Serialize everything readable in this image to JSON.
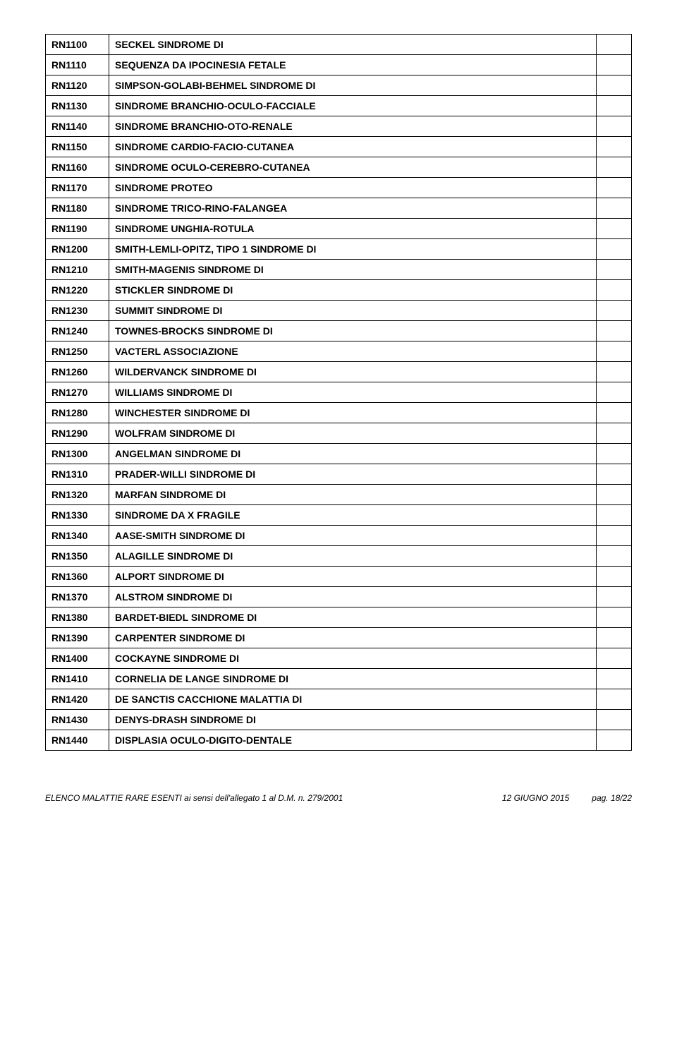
{
  "table": {
    "rows": [
      {
        "code": "RN1100",
        "desc": "SECKEL SINDROME DI"
      },
      {
        "code": "RN1110",
        "desc": "SEQUENZA DA IPOCINESIA FETALE"
      },
      {
        "code": "RN1120",
        "desc": "SIMPSON-GOLABI-BEHMEL SINDROME DI"
      },
      {
        "code": "RN1130",
        "desc": "SINDROME BRANCHIO-OCULO-FACCIALE"
      },
      {
        "code": "RN1140",
        "desc": "SINDROME BRANCHIO-OTO-RENALE"
      },
      {
        "code": "RN1150",
        "desc": "SINDROME CARDIO-FACIO-CUTANEA"
      },
      {
        "code": "RN1160",
        "desc": "SINDROME OCULO-CEREBRO-CUTANEA"
      },
      {
        "code": "RN1170",
        "desc": "SINDROME PROTEO"
      },
      {
        "code": "RN1180",
        "desc": "SINDROME TRICO-RINO-FALANGEA"
      },
      {
        "code": "RN1190",
        "desc": "SINDROME UNGHIA-ROTULA"
      },
      {
        "code": "RN1200",
        "desc": "SMITH-LEMLI-OPITZ, TIPO 1 SINDROME DI"
      },
      {
        "code": "RN1210",
        "desc": "SMITH-MAGENIS SINDROME DI"
      },
      {
        "code": "RN1220",
        "desc": "STICKLER SINDROME DI"
      },
      {
        "code": "RN1230",
        "desc": "SUMMIT SINDROME DI"
      },
      {
        "code": "RN1240",
        "desc": "TOWNES-BROCKS SINDROME DI"
      },
      {
        "code": "RN1250",
        "desc": "VACTERL ASSOCIAZIONE"
      },
      {
        "code": "RN1260",
        "desc": "WILDERVANCK SINDROME DI"
      },
      {
        "code": "RN1270",
        "desc": "WILLIAMS SINDROME DI"
      },
      {
        "code": "RN1280",
        "desc": "WINCHESTER SINDROME DI"
      },
      {
        "code": "RN1290",
        "desc": "WOLFRAM SINDROME DI"
      },
      {
        "code": "RN1300",
        "desc": "ANGELMAN SINDROME DI"
      },
      {
        "code": "RN1310",
        "desc": "PRADER-WILLI SINDROME DI"
      },
      {
        "code": "RN1320",
        "desc": "MARFAN SINDROME DI"
      },
      {
        "code": "RN1330",
        "desc": "SINDROME DA X FRAGILE"
      },
      {
        "code": "RN1340",
        "desc": "AASE-SMITH SINDROME DI"
      },
      {
        "code": "RN1350",
        "desc": "ALAGILLE SINDROME DI"
      },
      {
        "code": "RN1360",
        "desc": "ALPORT SINDROME DI"
      },
      {
        "code": "RN1370",
        "desc": "ALSTROM SINDROME DI"
      },
      {
        "code": "RN1380",
        "desc": "BARDET-BIEDL SINDROME DI"
      },
      {
        "code": "RN1390",
        "desc": "CARPENTER SINDROME DI"
      },
      {
        "code": "RN1400",
        "desc": "COCKAYNE SINDROME DI"
      },
      {
        "code": "RN1410",
        "desc": "CORNELIA DE LANGE SINDROME DI"
      },
      {
        "code": "RN1420",
        "desc": "DE SANCTIS CACCHIONE MALATTIA DI"
      },
      {
        "code": "RN1430",
        "desc": "DENYS-DRASH SINDROME DI"
      },
      {
        "code": "RN1440",
        "desc": "DISPLASIA OCULO-DIGITO-DENTALE"
      }
    ]
  },
  "footer": {
    "left": "ELENCO MALATTIE RARE ESENTI ai sensi dell'allegato 1 al D.M. n. 279/2001",
    "date": "12 GIUGNO 2015",
    "page": "pag. 18/22"
  },
  "style": {
    "font_family": "Century Gothic",
    "cell_font_size": 14,
    "cell_font_weight": 700,
    "footer_font_size": 12,
    "border_color": "#000000",
    "background_color": "#ffffff",
    "text_color": "#000000",
    "col_code_width": 90,
    "col_empty_width": 50
  }
}
